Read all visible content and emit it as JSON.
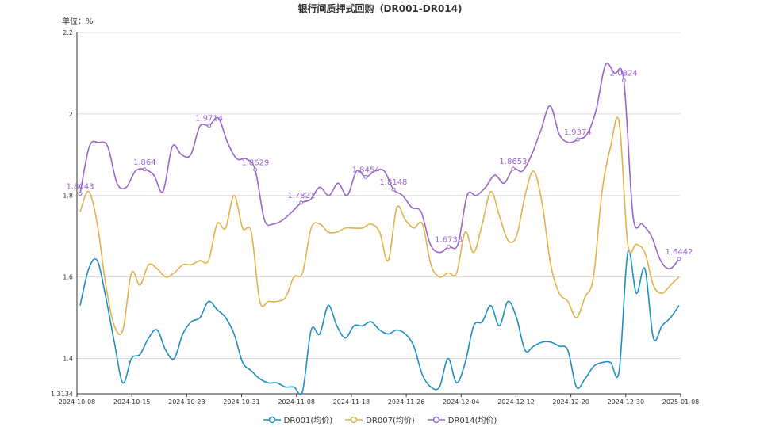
{
  "chart_data": {
    "type": "line",
    "title": "银行间质押式回购（DR001-DR014)",
    "unit_label": "单位：%",
    "xlabel": "",
    "ylabel": "",
    "ylim": [
      1.3134,
      2.2
    ],
    "yticks": [
      {
        "v": 1.3134,
        "t": "1.3134"
      },
      {
        "v": 1.4,
        "t": "1.4"
      },
      {
        "v": 1.6,
        "t": "1.6"
      },
      {
        "v": 1.8,
        "t": "1.8"
      },
      {
        "v": 2.0,
        "t": "2"
      },
      {
        "v": 2.2,
        "t": "2.2"
      }
    ],
    "xticks": [
      "2024-10-08",
      "2024-10-15",
      "2024-10-23",
      "2024-10-31",
      "2024-11-08",
      "2024-11-18",
      "2024-11-26",
      "2024-12-04",
      "2024-12-12",
      "2024-12-20",
      "2024-12-30",
      "2025-01-08"
    ],
    "grid": true,
    "legend_position": "bottom",
    "series": [
      {
        "name": "DR001(均价)",
        "color": "#1e8fc0",
        "values": [
          1.53,
          1.62,
          1.64,
          1.55,
          1.44,
          1.34,
          1.4,
          1.41,
          1.45,
          1.47,
          1.42,
          1.4,
          1.46,
          1.49,
          1.5,
          1.54,
          1.52,
          1.5,
          1.46,
          1.39,
          1.37,
          1.35,
          1.34,
          1.34,
          1.33,
          1.33,
          1.32,
          1.47,
          1.46,
          1.53,
          1.48,
          1.45,
          1.48,
          1.48,
          1.49,
          1.47,
          1.46,
          1.47,
          1.46,
          1.43,
          1.36,
          1.33,
          1.33,
          1.4,
          1.34,
          1.39,
          1.48,
          1.49,
          1.53,
          1.48,
          1.54,
          1.5,
          1.42,
          1.43,
          1.44,
          1.44,
          1.43,
          1.42,
          1.33,
          1.35,
          1.38,
          1.39,
          1.39,
          1.37,
          1.66,
          1.56,
          1.62,
          1.45,
          1.48,
          1.5,
          1.53
        ]
      },
      {
        "name": "DR007(均价)",
        "color": "#e0b24c",
        "values": [
          1.76,
          1.81,
          1.73,
          1.58,
          1.48,
          1.47,
          1.61,
          1.58,
          1.63,
          1.62,
          1.6,
          1.61,
          1.63,
          1.63,
          1.64,
          1.64,
          1.73,
          1.72,
          1.8,
          1.72,
          1.71,
          1.54,
          1.54,
          1.54,
          1.55,
          1.6,
          1.61,
          1.72,
          1.73,
          1.71,
          1.71,
          1.72,
          1.72,
          1.72,
          1.73,
          1.71,
          1.64,
          1.77,
          1.74,
          1.72,
          1.73,
          1.63,
          1.6,
          1.61,
          1.61,
          1.71,
          1.66,
          1.73,
          1.81,
          1.75,
          1.69,
          1.7,
          1.8,
          1.86,
          1.78,
          1.63,
          1.56,
          1.54,
          1.5,
          1.55,
          1.6,
          1.81,
          1.92,
          1.98,
          1.68,
          1.68,
          1.66,
          1.58,
          1.56,
          1.58,
          1.6
        ]
      },
      {
        "name": "DR014(均价)",
        "color": "#9966cc",
        "values": [
          1.8043,
          1.92,
          1.93,
          1.92,
          1.83,
          1.82,
          1.86,
          1.864,
          1.85,
          1.81,
          1.92,
          1.9,
          1.9,
          1.97,
          1.9714,
          1.99,
          1.93,
          1.89,
          1.89,
          1.8629,
          1.74,
          1.73,
          1.74,
          1.76,
          1.7821,
          1.79,
          1.82,
          1.8,
          1.83,
          1.8,
          1.86,
          1.8454,
          1.86,
          1.86,
          1.8148,
          1.8,
          1.77,
          1.76,
          1.68,
          1.66,
          1.6738,
          1.68,
          1.8,
          1.8,
          1.82,
          1.85,
          1.83,
          1.8653,
          1.86,
          1.9,
          1.96,
          2.02,
          1.95,
          1.93,
          1.9374,
          1.95,
          2.01,
          2.12,
          2.1,
          2.0824,
          1.75,
          1.73,
          1.7,
          1.64,
          1.62,
          1.6442
        ]
      }
    ],
    "data_labels": [
      {
        "series": 2,
        "index": 0,
        "text": "1.8043"
      },
      {
        "series": 2,
        "index": 7,
        "text": "1.864"
      },
      {
        "series": 2,
        "index": 14,
        "text": "1.9714"
      },
      {
        "series": 2,
        "index": 19,
        "text": "1.8629"
      },
      {
        "series": 2,
        "index": 24,
        "text": "1.7821"
      },
      {
        "series": 2,
        "index": 31,
        "text": "1.8454"
      },
      {
        "series": 2,
        "index": 34,
        "text": "1.8148"
      },
      {
        "series": 2,
        "index": 40,
        "text": "1.6738"
      },
      {
        "series": 2,
        "index": 47,
        "text": "1.8653"
      },
      {
        "series": 2,
        "index": 54,
        "text": "1.9374"
      },
      {
        "series": 2,
        "index": 59,
        "text": "2.0824"
      },
      {
        "series": 2,
        "index": 65,
        "text": "1.6442"
      }
    ]
  }
}
